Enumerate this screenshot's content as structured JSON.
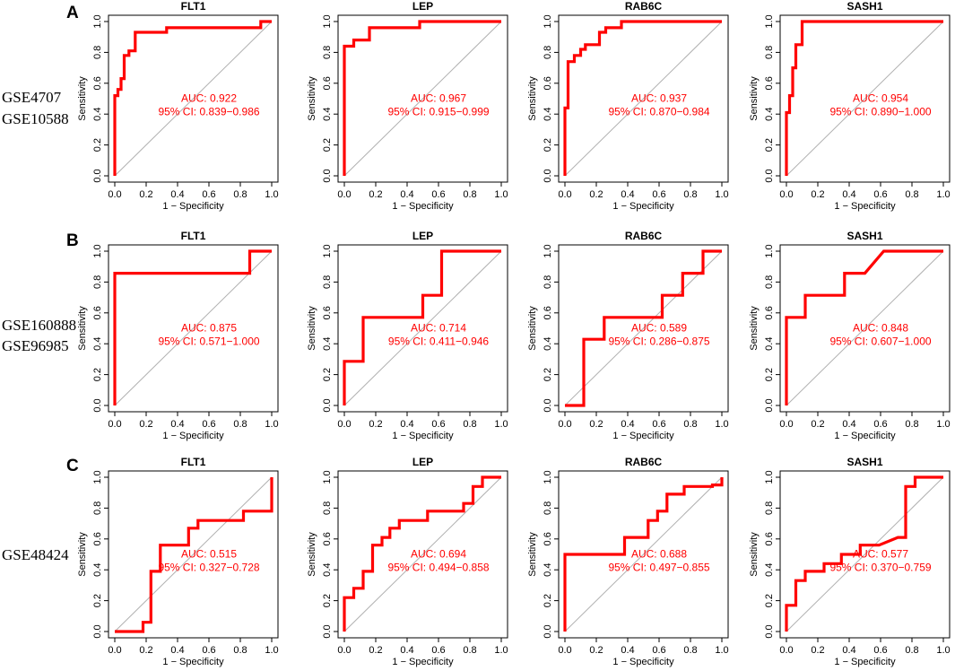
{
  "rows": [
    {
      "letter": "A",
      "datasets": [
        "GSE4707",
        "GSE10588"
      ]
    },
    {
      "letter": "B",
      "datasets": [
        "GSE160888",
        "GSE96985"
      ]
    },
    {
      "letter": "C",
      "datasets": [
        "GSE48424"
      ]
    }
  ],
  "colors": {
    "curve": "#ff0000",
    "diagonal": "#b0b0b0",
    "axis": "#000000"
  },
  "chart_data": [
    {
      "type": "line",
      "row": "A",
      "title": "FLT1",
      "xlabel": "1 − Specificity",
      "ylabel": "Sensitivity",
      "xlim": [
        0,
        1
      ],
      "ylim": [
        0,
        1
      ],
      "ticks": [
        "0.0",
        "0.2",
        "0.4",
        "0.6",
        "0.8",
        "1.0"
      ],
      "auc_label": "AUC: 0.922",
      "ci_label": "95% CI: 0.839−0.986",
      "x": [
        0,
        0,
        0.02,
        0.02,
        0.04,
        0.04,
        0.06,
        0.06,
        0.09,
        0.09,
        0.13,
        0.13,
        0.33,
        0.33,
        0.93,
        0.93,
        1
      ],
      "y": [
        0,
        0.52,
        0.52,
        0.56,
        0.56,
        0.63,
        0.63,
        0.78,
        0.78,
        0.81,
        0.81,
        0.93,
        0.93,
        0.96,
        0.96,
        1,
        1
      ]
    },
    {
      "type": "line",
      "row": "A",
      "title": "LEP",
      "xlabel": "1 − Specificity",
      "ylabel": "Sensitivity",
      "xlim": [
        0,
        1
      ],
      "ylim": [
        0,
        1
      ],
      "ticks": [
        "0.0",
        "0.2",
        "0.4",
        "0.6",
        "0.8",
        "1.0"
      ],
      "auc_label": "AUC: 0.967",
      "ci_label": "95% CI: 0.915−0.999",
      "x": [
        0,
        0,
        0.06,
        0.06,
        0.16,
        0.16,
        0.48,
        0.48,
        1
      ],
      "y": [
        0,
        0.84,
        0.84,
        0.88,
        0.88,
        0.96,
        0.96,
        1,
        1
      ]
    },
    {
      "type": "line",
      "row": "A",
      "title": "RAB6C",
      "xlabel": "1 − Specificity",
      "ylabel": "Sensitivity",
      "xlim": [
        0,
        1
      ],
      "ylim": [
        0,
        1
      ],
      "ticks": [
        "0.0",
        "0.2",
        "0.4",
        "0.6",
        "0.8",
        "1.0"
      ],
      "auc_label": "AUC: 0.937",
      "ci_label": "95% CI: 0.870−0.984",
      "x": [
        0,
        0,
        0.02,
        0.02,
        0.06,
        0.06,
        0.1,
        0.1,
        0.13,
        0.13,
        0.22,
        0.22,
        0.26,
        0.26,
        0.36,
        0.36,
        1
      ],
      "y": [
        0,
        0.44,
        0.44,
        0.74,
        0.74,
        0.78,
        0.78,
        0.82,
        0.82,
        0.85,
        0.85,
        0.93,
        0.93,
        0.96,
        0.96,
        1,
        1
      ]
    },
    {
      "type": "line",
      "row": "A",
      "title": "SASH1",
      "xlabel": "1 − Specificity",
      "ylabel": "Sensitivity",
      "xlim": [
        0,
        1
      ],
      "ylim": [
        0,
        1
      ],
      "ticks": [
        "0.0",
        "0.2",
        "0.4",
        "0.6",
        "0.8",
        "1.0"
      ],
      "auc_label": "AUC: 0.954",
      "ci_label": "95% CI: 0.890−1.000",
      "x": [
        0,
        0,
        0.02,
        0.02,
        0.04,
        0.04,
        0.06,
        0.06,
        0.1,
        0.1,
        1
      ],
      "y": [
        0,
        0.41,
        0.41,
        0.52,
        0.52,
        0.7,
        0.7,
        0.85,
        0.85,
        1,
        1
      ]
    },
    {
      "type": "line",
      "row": "B",
      "title": "FLT1",
      "xlabel": "1 − Specificity",
      "ylabel": "Sensitivity",
      "xlim": [
        0,
        1
      ],
      "ylim": [
        0,
        1
      ],
      "ticks": [
        "0.0",
        "0.2",
        "0.4",
        "0.6",
        "0.8",
        "1.0"
      ],
      "auc_label": "AUC: 0.875",
      "ci_label": "95% CI: 0.571−1.000",
      "x": [
        0,
        0,
        0.86,
        0.86,
        1
      ],
      "y": [
        0,
        0.857,
        0.857,
        1,
        1
      ]
    },
    {
      "type": "line",
      "row": "B",
      "title": "LEP",
      "xlabel": "1 − Specificity",
      "ylabel": "Sensitivity",
      "xlim": [
        0,
        1
      ],
      "ylim": [
        0,
        1
      ],
      "ticks": [
        "0.0",
        "0.2",
        "0.4",
        "0.6",
        "0.8",
        "1.0"
      ],
      "auc_label": "AUC: 0.714",
      "ci_label": "95% CI: 0.411−0.946",
      "x": [
        0,
        0,
        0.12,
        0.12,
        0.5,
        0.5,
        0.62,
        0.62,
        1
      ],
      "y": [
        0,
        0.286,
        0.286,
        0.571,
        0.571,
        0.714,
        0.714,
        1,
        1
      ]
    },
    {
      "type": "line",
      "row": "B",
      "title": "RAB6C",
      "xlabel": "1 − Specificity",
      "ylabel": "Sensitivity",
      "xlim": [
        0,
        1
      ],
      "ylim": [
        0,
        1
      ],
      "ticks": [
        "0.0",
        "0.2",
        "0.4",
        "0.6",
        "0.8",
        "1.0"
      ],
      "auc_label": "AUC: 0.589",
      "ci_label": "95% CI: 0.286−0.875",
      "x": [
        0,
        0.12,
        0.12,
        0.25,
        0.25,
        0.62,
        0.62,
        0.75,
        0.75,
        0.88,
        0.88,
        1
      ],
      "y": [
        0,
        0,
        0.429,
        0.429,
        0.571,
        0.571,
        0.714,
        0.714,
        0.857,
        0.857,
        1,
        1
      ]
    },
    {
      "type": "line",
      "row": "B",
      "title": "SASH1",
      "xlabel": "1 − Specificity",
      "ylabel": "Sensitivity",
      "xlim": [
        0,
        1
      ],
      "ylim": [
        0,
        1
      ],
      "ticks": [
        "0.0",
        "0.2",
        "0.4",
        "0.6",
        "0.8",
        "1.0"
      ],
      "auc_label": "AUC: 0.848",
      "ci_label": "95% CI: 0.607−1.000",
      "x": [
        0,
        0,
        0.12,
        0.12,
        0.37,
        0.37,
        0.5,
        0.5,
        0.62,
        0.62,
        1
      ],
      "y": [
        0,
        0.571,
        0.571,
        0.714,
        0.714,
        0.857,
        0.857,
        0.857,
        1,
        1,
        1
      ]
    },
    {
      "type": "line",
      "row": "C",
      "title": "FLT1",
      "xlabel": "1 − Specificity",
      "ylabel": "Sensitivity",
      "xlim": [
        0,
        1
      ],
      "ylim": [
        0,
        1
      ],
      "ticks": [
        "0.0",
        "0.2",
        "0.4",
        "0.6",
        "0.8",
        "1.0"
      ],
      "auc_label": "AUC: 0.515",
      "ci_label": "95% CI: 0.327−0.728",
      "x": [
        0,
        0.18,
        0.18,
        0.23,
        0.23,
        0.29,
        0.29,
        0.47,
        0.47,
        0.53,
        0.53,
        0.82,
        0.82,
        1,
        1
      ],
      "y": [
        0,
        0,
        0.06,
        0.06,
        0.39,
        0.39,
        0.56,
        0.56,
        0.67,
        0.67,
        0.72,
        0.72,
        0.78,
        0.78,
        1
      ]
    },
    {
      "type": "line",
      "row": "C",
      "title": "LEP",
      "xlabel": "1 − Specificity",
      "ylabel": "Sensitivity",
      "xlim": [
        0,
        1
      ],
      "ylim": [
        0,
        1
      ],
      "ticks": [
        "0.0",
        "0.2",
        "0.4",
        "0.6",
        "0.8",
        "1.0"
      ],
      "auc_label": "AUC: 0.694",
      "ci_label": "95% CI: 0.494−0.858",
      "x": [
        0,
        0,
        0.06,
        0.06,
        0.12,
        0.12,
        0.18,
        0.18,
        0.24,
        0.24,
        0.29,
        0.29,
        0.35,
        0.35,
        0.53,
        0.53,
        0.76,
        0.76,
        0.82,
        0.82,
        0.88,
        0.88,
        1
      ],
      "y": [
        0,
        0.22,
        0.22,
        0.28,
        0.28,
        0.39,
        0.39,
        0.56,
        0.56,
        0.61,
        0.61,
        0.67,
        0.67,
        0.72,
        0.72,
        0.78,
        0.78,
        0.83,
        0.83,
        0.94,
        0.94,
        1,
        1
      ]
    },
    {
      "type": "line",
      "row": "C",
      "title": "RAB6C",
      "xlabel": "1 − Specificity",
      "ylabel": "Sensitivity",
      "xlim": [
        0,
        1
      ],
      "ylim": [
        0,
        1
      ],
      "ticks": [
        "0.0",
        "0.2",
        "0.4",
        "0.6",
        "0.8",
        "1.0"
      ],
      "auc_label": "AUC: 0.688",
      "ci_label": "95% CI: 0.497−0.855",
      "x": [
        0,
        0,
        0.38,
        0.38,
        0.53,
        0.53,
        0.59,
        0.59,
        0.65,
        0.65,
        0.76,
        0.76,
        0.94,
        0.94,
        1,
        1
      ],
      "y": [
        0,
        0.5,
        0.5,
        0.61,
        0.61,
        0.72,
        0.72,
        0.78,
        0.78,
        0.89,
        0.89,
        0.94,
        0.94,
        0.95,
        0.95,
        1
      ]
    },
    {
      "type": "line",
      "row": "C",
      "title": "SASH1",
      "xlabel": "1 − Specificity",
      "ylabel": "Sensitivity",
      "xlim": [
        0,
        1
      ],
      "ylim": [
        0,
        1
      ],
      "ticks": [
        "0.0",
        "0.2",
        "0.4",
        "0.6",
        "0.8",
        "1.0"
      ],
      "auc_label": "AUC: 0.577",
      "ci_label": "95% CI: 0.370−0.759",
      "x": [
        0,
        0,
        0.06,
        0.06,
        0.12,
        0.12,
        0.24,
        0.24,
        0.35,
        0.35,
        0.47,
        0.47,
        0.59,
        0.59,
        0.71,
        0.71,
        0.76,
        0.76,
        0.82,
        0.82,
        0.94,
        1
      ],
      "y": [
        0,
        0.17,
        0.17,
        0.33,
        0.33,
        0.39,
        0.39,
        0.44,
        0.44,
        0.5,
        0.5,
        0.56,
        0.56,
        0.56,
        0.61,
        0.61,
        0.61,
        0.94,
        0.94,
        1,
        1,
        1
      ]
    }
  ]
}
